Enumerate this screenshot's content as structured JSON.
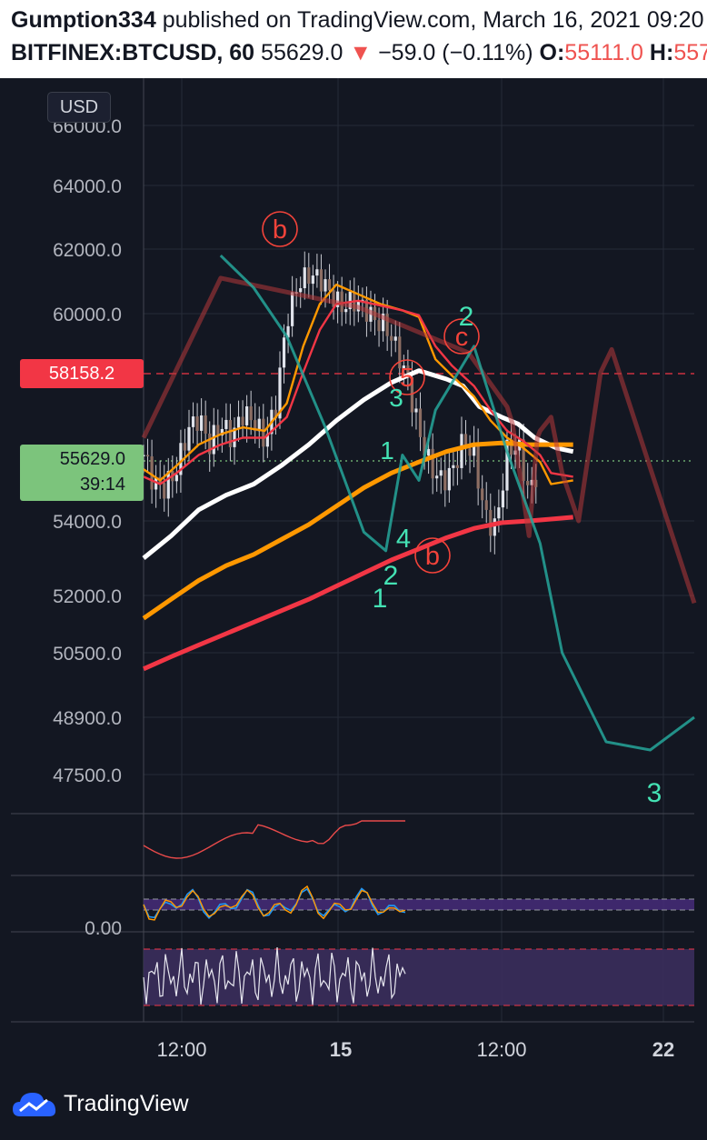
{
  "header": {
    "author": "Gumption334",
    "published_text": "published on TradingView.com, March 16, 2021 09:20",
    "symbol": "BITFINEX:BTCUSD, 60",
    "last": "55629.0",
    "arrow": "▼",
    "change": "−59.0 (−0.11%)",
    "open_label": "O:",
    "open_value": "55111.0",
    "high_label": "H:",
    "high_value": "557"
  },
  "axis": {
    "currency": "USD",
    "price_labels": [
      "66000.0",
      "64000.0",
      "62000.0",
      "60000.0",
      "54000.0",
      "52000.0",
      "50500.0",
      "48900.0",
      "47500.0",
      "0.00"
    ],
    "time_labels": [
      "12:00",
      "15",
      "12:00",
      "22"
    ]
  },
  "tags": {
    "level": "58158.2",
    "last_price": "55629.0",
    "timer": "39:14"
  },
  "wave_labels": {
    "b_top": "b",
    "c": "c",
    "five": "5",
    "b_low": "b",
    "three_small": "3",
    "one_small": "1",
    "four": "4",
    "two_low": "2",
    "one_low": "1",
    "two_high": "2",
    "three_far": "3"
  },
  "colors": {
    "background": "#131722",
    "green_wave": "#26a69a",
    "red_wave": "#b7393a",
    "wave_label": "#44e2b4",
    "circle_label": "#f2433a",
    "white_ma": "#ffffff",
    "orange_ma": "#ff9800",
    "red_ma": "#f23645",
    "level_line": "#f23645",
    "last_price_tag": "#7cc47c"
  },
  "chart_data": {
    "type": "line",
    "title": "",
    "xlabel": "",
    "ylabel": "USD",
    "ylim": [
      47000,
      66500
    ],
    "x_ticks": [
      "12:00",
      "15",
      "12:00",
      "22"
    ],
    "horizontal_lines": [
      {
        "price": 58158.2,
        "style": "dashed",
        "color": "#f23645"
      },
      {
        "price": 55629.0,
        "style": "dotted",
        "color": "#7cc47c"
      }
    ],
    "series": [
      {
        "kind": "moving-average",
        "color": "#ffffff",
        "points": [
          [
            0,
            53000
          ],
          [
            0.05,
            53600
          ],
          [
            0.1,
            54300
          ],
          [
            0.15,
            54700
          ],
          [
            0.2,
            55000
          ],
          [
            0.25,
            55500
          ],
          [
            0.3,
            56100
          ],
          [
            0.35,
            56800
          ],
          [
            0.4,
            57400
          ],
          [
            0.45,
            57900
          ],
          [
            0.5,
            58250
          ],
          [
            0.55,
            58000
          ],
          [
            0.58,
            57800
          ],
          [
            0.61,
            57200
          ],
          [
            0.65,
            56900
          ],
          [
            0.68,
            56700
          ],
          [
            0.71,
            56300
          ],
          [
            0.75,
            56000
          ],
          [
            0.78,
            55900
          ]
        ]
      },
      {
        "kind": "moving-average",
        "color": "#ff9800",
        "points": [
          [
            0,
            51400
          ],
          [
            0.05,
            51900
          ],
          [
            0.1,
            52400
          ],
          [
            0.15,
            52800
          ],
          [
            0.2,
            53100
          ],
          [
            0.25,
            53500
          ],
          [
            0.3,
            53900
          ],
          [
            0.35,
            54400
          ],
          [
            0.4,
            54900
          ],
          [
            0.45,
            55300
          ],
          [
            0.5,
            55600
          ],
          [
            0.55,
            55900
          ],
          [
            0.6,
            56100
          ],
          [
            0.65,
            56150
          ],
          [
            0.7,
            56100
          ],
          [
            0.74,
            56100
          ],
          [
            0.78,
            56100
          ]
        ]
      },
      {
        "kind": "moving-average",
        "color": "#f23645",
        "points": [
          [
            0,
            50100
          ],
          [
            0.05,
            50400
          ],
          [
            0.1,
            50700
          ],
          [
            0.15,
            51000
          ],
          [
            0.2,
            51300
          ],
          [
            0.25,
            51600
          ],
          [
            0.3,
            51900
          ],
          [
            0.35,
            52250
          ],
          [
            0.4,
            52600
          ],
          [
            0.45,
            52950
          ],
          [
            0.5,
            53250
          ],
          [
            0.55,
            53550
          ],
          [
            0.6,
            53800
          ],
          [
            0.65,
            53950
          ],
          [
            0.7,
            54000
          ],
          [
            0.74,
            54050
          ],
          [
            0.78,
            54100
          ]
        ]
      },
      {
        "kind": "fast-ma-orange",
        "color": "#ff9800",
        "points": [
          [
            0,
            55400
          ],
          [
            0.03,
            55100
          ],
          [
            0.06,
            55500
          ],
          [
            0.1,
            56100
          ],
          [
            0.14,
            56400
          ],
          [
            0.18,
            56600
          ],
          [
            0.22,
            56500
          ],
          [
            0.26,
            57300
          ],
          [
            0.29,
            59000
          ],
          [
            0.32,
            60300
          ],
          [
            0.35,
            60900
          ],
          [
            0.39,
            60600
          ],
          [
            0.43,
            60300
          ],
          [
            0.47,
            60100
          ],
          [
            0.5,
            59900
          ],
          [
            0.53,
            58600
          ],
          [
            0.56,
            58100
          ],
          [
            0.6,
            57500
          ],
          [
            0.63,
            56800
          ],
          [
            0.66,
            56300
          ],
          [
            0.69,
            56000
          ],
          [
            0.72,
            55600
          ],
          [
            0.74,
            55000
          ],
          [
            0.78,
            55100
          ]
        ]
      },
      {
        "kind": "fast-ma-red",
        "color": "#f23645",
        "points": [
          [
            0,
            55200
          ],
          [
            0.03,
            55000
          ],
          [
            0.06,
            55300
          ],
          [
            0.1,
            55800
          ],
          [
            0.14,
            56100
          ],
          [
            0.18,
            56300
          ],
          [
            0.22,
            56300
          ],
          [
            0.26,
            56900
          ],
          [
            0.29,
            58200
          ],
          [
            0.32,
            59500
          ],
          [
            0.35,
            60300
          ],
          [
            0.39,
            60400
          ],
          [
            0.43,
            60250
          ],
          [
            0.47,
            60100
          ],
          [
            0.5,
            59950
          ],
          [
            0.53,
            59000
          ],
          [
            0.56,
            58400
          ],
          [
            0.6,
            57800
          ],
          [
            0.63,
            57100
          ],
          [
            0.66,
            56500
          ],
          [
            0.69,
            56200
          ],
          [
            0.72,
            55800
          ],
          [
            0.74,
            55300
          ],
          [
            0.78,
            55200
          ]
        ]
      },
      {
        "kind": "price-path",
        "color": "#d1d4dc",
        "points": [
          [
            0,
            55800
          ],
          [
            0.02,
            55000
          ],
          [
            0.04,
            54900
          ],
          [
            0.06,
            55400
          ],
          [
            0.08,
            56500
          ],
          [
            0.1,
            56900
          ],
          [
            0.12,
            56100
          ],
          [
            0.14,
            56700
          ],
          [
            0.16,
            56300
          ],
          [
            0.18,
            57000
          ],
          [
            0.2,
            56800
          ],
          [
            0.22,
            56200
          ],
          [
            0.24,
            57200
          ],
          [
            0.26,
            59800
          ],
          [
            0.28,
            60900
          ],
          [
            0.3,
            61200
          ],
          [
            0.32,
            61100
          ],
          [
            0.34,
            60600
          ],
          [
            0.36,
            60200
          ],
          [
            0.38,
            60400
          ],
          [
            0.4,
            60200
          ],
          [
            0.42,
            59800
          ],
          [
            0.44,
            59600
          ],
          [
            0.46,
            58900
          ],
          [
            0.48,
            57900
          ],
          [
            0.5,
            56500
          ],
          [
            0.52,
            55500
          ],
          [
            0.54,
            55100
          ],
          [
            0.56,
            55300
          ],
          [
            0.58,
            56200
          ],
          [
            0.6,
            55800
          ],
          [
            0.62,
            54100
          ],
          [
            0.64,
            53800
          ],
          [
            0.66,
            55900
          ],
          [
            0.68,
            56100
          ],
          [
            0.7,
            54700
          ],
          [
            0.72,
            55600
          ]
        ]
      },
      {
        "kind": "wave-projection",
        "color": "#b7393a",
        "points": [
          [
            0,
            56300
          ],
          [
            0.14,
            61100
          ],
          [
            0.39,
            60200
          ],
          [
            0.59,
            58800
          ],
          [
            0.66,
            57200
          ],
          [
            0.67,
            56700
          ],
          [
            0.7,
            53600
          ],
          [
            0.715,
            56300
          ],
          [
            0.72,
            56500
          ],
          [
            0.74,
            56900
          ],
          [
            0.76,
            55300
          ],
          [
            0.79,
            54000
          ],
          [
            0.83,
            58200
          ],
          [
            0.85,
            58900
          ],
          [
            1.0,
            51800
          ]
        ]
      },
      {
        "kind": "wave-projection",
        "color": "#26a69a",
        "points": [
          [
            0.14,
            61800
          ],
          [
            0.2,
            60800
          ],
          [
            0.26,
            59300
          ],
          [
            0.33,
            56600
          ],
          [
            0.4,
            53700
          ],
          [
            0.44,
            53200
          ],
          [
            0.47,
            55800
          ],
          [
            0.5,
            55100
          ],
          [
            0.53,
            57100
          ],
          [
            0.6,
            59000
          ],
          [
            0.66,
            55900
          ],
          [
            0.72,
            53400
          ],
          [
            0.76,
            50500
          ],
          [
            0.84,
            48300
          ],
          [
            0.92,
            48100
          ],
          [
            1.0,
            48900
          ]
        ]
      }
    ]
  }
}
